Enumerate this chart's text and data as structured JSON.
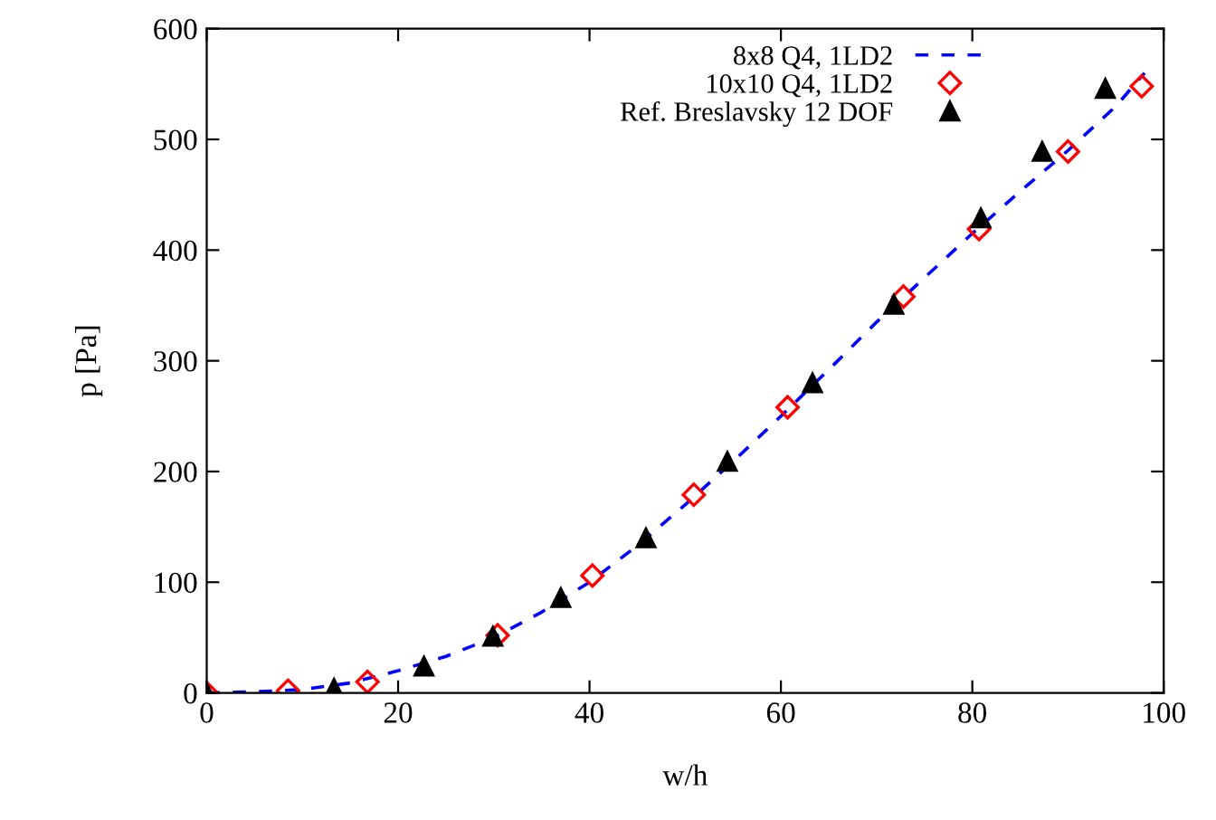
{
  "chart_data": {
    "type": "line",
    "xlabel": "w/h",
    "ylabel": "p [Pa]",
    "xlim": [
      0,
      100
    ],
    "ylim": [
      0,
      600
    ],
    "xticks": [
      0,
      20,
      40,
      60,
      80,
      100
    ],
    "yticks": [
      0,
      100,
      200,
      300,
      400,
      500,
      600
    ],
    "grid": false,
    "legend": "top right",
    "series": [
      {
        "name": "8x8 Q4, 1LD2",
        "color": "#0000ff",
        "line_style": "dashed",
        "marker": "none",
        "x": [
          0,
          5,
          10,
          15,
          20,
          25,
          30,
          35,
          40,
          45,
          50,
          55,
          60,
          65,
          70,
          75,
          80,
          85,
          90,
          95,
          98
        ],
        "values": [
          0,
          1,
          3,
          9,
          20,
          33,
          50,
          73,
          100,
          133,
          170,
          209,
          250,
          292,
          335,
          375,
          415,
          453,
          490,
          530,
          560
        ]
      },
      {
        "name": "10x10 Q4, 1LD2",
        "type": "scatter",
        "color": "#ff0000",
        "marker": "diamond",
        "x": [
          0,
          8.5,
          16.8,
          30.4,
          40.3,
          50.9,
          60.7,
          72.8,
          80.7,
          90,
          97.7
        ],
        "values": [
          0,
          2,
          10,
          52,
          106,
          179,
          258,
          358,
          419,
          489,
          548
        ]
      },
      {
        "name": "Ref. Breslavsky 12 DOF",
        "type": "scatter",
        "color": "#000000",
        "marker": "triangle",
        "x": [
          0,
          13.3,
          22.7,
          29.9,
          37,
          45.9,
          54.4,
          63.3,
          71.8,
          80.9,
          87.3,
          93.9
        ],
        "values": [
          0,
          4,
          24,
          51,
          86,
          140,
          209,
          280,
          351,
          429,
          489,
          546
        ]
      }
    ]
  }
}
